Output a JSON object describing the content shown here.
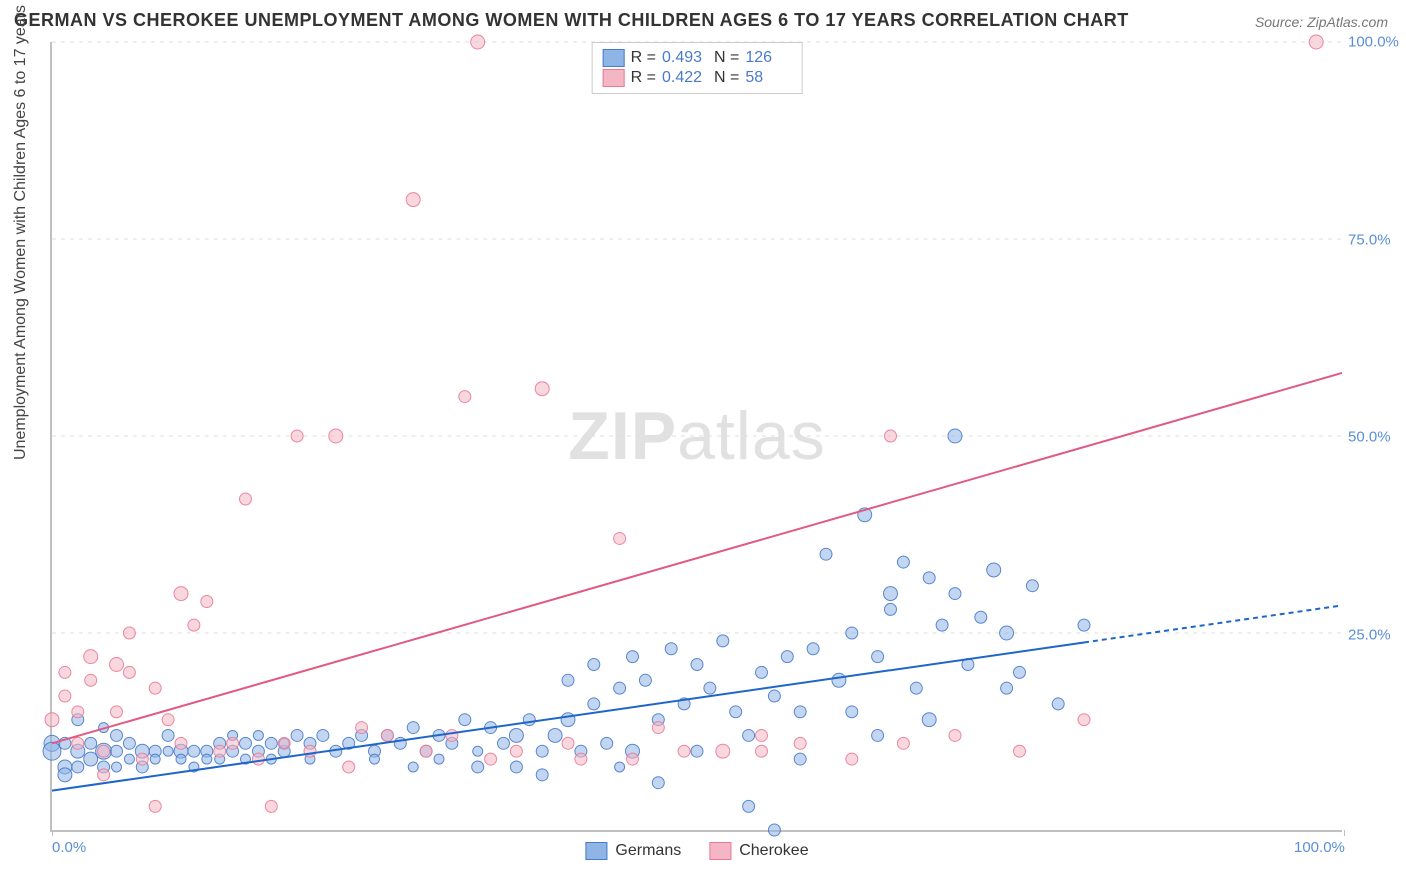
{
  "title": "GERMAN VS CHEROKEE UNEMPLOYMENT AMONG WOMEN WITH CHILDREN AGES 6 TO 17 YEARS CORRELATION CHART",
  "source_label": "Source:",
  "source_value": "ZipAtlas.com",
  "ylabel": "Unemployment Among Women with Children Ages 6 to 17 years",
  "watermark_left": "ZIP",
  "watermark_right": "atlas",
  "chart": {
    "type": "scatter",
    "xlim": [
      0,
      100
    ],
    "ylim": [
      0,
      100
    ],
    "y_ticks": [
      25,
      50,
      75,
      100
    ],
    "y_tick_labels": [
      "25.0%",
      "50.0%",
      "75.0%",
      "100.0%"
    ],
    "x_ticks": [
      0,
      100
    ],
    "x_tick_labels": [
      "0.0%",
      "100.0%"
    ],
    "background_color": "#ffffff",
    "grid_color": "#dddddd",
    "grid_dash": true,
    "axis_color": "#c0c0c0",
    "tick_label_color": "#5a8fd6",
    "marker_radius_min": 5,
    "marker_radius_max": 10,
    "marker_opacity": 0.55,
    "marker_stroke_opacity": 0.9,
    "series": [
      {
        "name": "Germans",
        "fill_color": "#8fb5e6",
        "stroke_color": "#4a7bc8",
        "stats": {
          "R": "0.493",
          "N": "126"
        },
        "trend": {
          "x1": 0,
          "y1": 5,
          "x2": 80,
          "y2": 23.8,
          "color": "#1e66c8",
          "width": 2,
          "extrap_to_x": 100,
          "extrap_y": 28.5,
          "dash": "5,4"
        },
        "points": [
          [
            0,
            11,
            8
          ],
          [
            0,
            10,
            9
          ],
          [
            1,
            8,
            7
          ],
          [
            1,
            7,
            7
          ],
          [
            1,
            11,
            6
          ],
          [
            2,
            10,
            7
          ],
          [
            2,
            14,
            6
          ],
          [
            2,
            8,
            6
          ],
          [
            3,
            9,
            7
          ],
          [
            3,
            11,
            6
          ],
          [
            4,
            10,
            8
          ],
          [
            4,
            13,
            5
          ],
          [
            4,
            8,
            6
          ],
          [
            5,
            12,
            6
          ],
          [
            5,
            10,
            6
          ],
          [
            5,
            8,
            5
          ],
          [
            6,
            11,
            6
          ],
          [
            6,
            9,
            5
          ],
          [
            7,
            10,
            7
          ],
          [
            7,
            8,
            6
          ],
          [
            8,
            10,
            6
          ],
          [
            8,
            9,
            5
          ],
          [
            9,
            12,
            6
          ],
          [
            9,
            10,
            5
          ],
          [
            10,
            10,
            7
          ],
          [
            10,
            9,
            5
          ],
          [
            11,
            10,
            6
          ],
          [
            11,
            8,
            5
          ],
          [
            12,
            10,
            6
          ],
          [
            12,
            9,
            5
          ],
          [
            13,
            11,
            6
          ],
          [
            13,
            9,
            5
          ],
          [
            14,
            10,
            6
          ],
          [
            14,
            12,
            5
          ],
          [
            15,
            11,
            6
          ],
          [
            15,
            9,
            5
          ],
          [
            16,
            10,
            6
          ],
          [
            16,
            12,
            5
          ],
          [
            17,
            11,
            6
          ],
          [
            17,
            9,
            5
          ],
          [
            18,
            10,
            6
          ],
          [
            18,
            11,
            5
          ],
          [
            19,
            12,
            6
          ],
          [
            20,
            11,
            6
          ],
          [
            20,
            9,
            5
          ],
          [
            21,
            12,
            6
          ],
          [
            22,
            10,
            6
          ],
          [
            23,
            11,
            6
          ],
          [
            24,
            12,
            6
          ],
          [
            25,
            10,
            6
          ],
          [
            25,
            9,
            5
          ],
          [
            26,
            12,
            6
          ],
          [
            27,
            11,
            6
          ],
          [
            28,
            8,
            5
          ],
          [
            28,
            13,
            6
          ],
          [
            29,
            10,
            6
          ],
          [
            30,
            12,
            6
          ],
          [
            30,
            9,
            5
          ],
          [
            31,
            11,
            6
          ],
          [
            32,
            14,
            6
          ],
          [
            33,
            10,
            5
          ],
          [
            33,
            8,
            6
          ],
          [
            34,
            13,
            6
          ],
          [
            35,
            11,
            6
          ],
          [
            36,
            12,
            7
          ],
          [
            36,
            8,
            6
          ],
          [
            37,
            14,
            6
          ],
          [
            38,
            10,
            6
          ],
          [
            38,
            7,
            6
          ],
          [
            39,
            12,
            7
          ],
          [
            40,
            19,
            6
          ],
          [
            40,
            14,
            7
          ],
          [
            41,
            10,
            6
          ],
          [
            42,
            21,
            6
          ],
          [
            42,
            16,
            6
          ],
          [
            43,
            11,
            6
          ],
          [
            44,
            18,
            6
          ],
          [
            44,
            8,
            5
          ],
          [
            45,
            22,
            6
          ],
          [
            45,
            10,
            7
          ],
          [
            46,
            19,
            6
          ],
          [
            47,
            6,
            6
          ],
          [
            47,
            14,
            6
          ],
          [
            48,
            23,
            6
          ],
          [
            49,
            16,
            6
          ],
          [
            50,
            21,
            6
          ],
          [
            50,
            10,
            6
          ],
          [
            51,
            18,
            6
          ],
          [
            52,
            24,
            6
          ],
          [
            53,
            15,
            6
          ],
          [
            54,
            3,
            6
          ],
          [
            54,
            12,
            6
          ],
          [
            55,
            20,
            6
          ],
          [
            56,
            17,
            6
          ],
          [
            56,
            0,
            6
          ],
          [
            57,
            22,
            6
          ],
          [
            58,
            15,
            6
          ],
          [
            58,
            9,
            6
          ],
          [
            59,
            23,
            6
          ],
          [
            60,
            35,
            6
          ],
          [
            61,
            19,
            7
          ],
          [
            62,
            25,
            6
          ],
          [
            62,
            15,
            6
          ],
          [
            63,
            40,
            7
          ],
          [
            64,
            22,
            6
          ],
          [
            64,
            12,
            6
          ],
          [
            65,
            28,
            6
          ],
          [
            65,
            30,
            7
          ],
          [
            66,
            34,
            6
          ],
          [
            67,
            18,
            6
          ],
          [
            68,
            32,
            6
          ],
          [
            68,
            14,
            7
          ],
          [
            69,
            26,
            6
          ],
          [
            70,
            30,
            6
          ],
          [
            70,
            50,
            7
          ],
          [
            71,
            21,
            6
          ],
          [
            72,
            27,
            6
          ],
          [
            73,
            33,
            7
          ],
          [
            74,
            18,
            6
          ],
          [
            74,
            25,
            7
          ],
          [
            75,
            20,
            6
          ],
          [
            76,
            31,
            6
          ],
          [
            78,
            16,
            6
          ],
          [
            80,
            26,
            6
          ]
        ]
      },
      {
        "name": "Cherokee",
        "fill_color": "#f4b6c4",
        "stroke_color": "#e87a96",
        "stats": {
          "R": "0.422",
          "N": "58"
        },
        "trend": {
          "x1": 0,
          "y1": 11,
          "x2": 100,
          "y2": 58,
          "color": "#e05a82",
          "width": 2
        },
        "points": [
          [
            0,
            14,
            7
          ],
          [
            1,
            17,
            6
          ],
          [
            1,
            20,
            6
          ],
          [
            2,
            11,
            6
          ],
          [
            2,
            15,
            6
          ],
          [
            3,
            19,
            6
          ],
          [
            3,
            22,
            7
          ],
          [
            4,
            10,
            6
          ],
          [
            4,
            7,
            6
          ],
          [
            5,
            21,
            7
          ],
          [
            5,
            15,
            6
          ],
          [
            6,
            20,
            6
          ],
          [
            6,
            25,
            6
          ],
          [
            7,
            9,
            6
          ],
          [
            8,
            18,
            6
          ],
          [
            8,
            3,
            6
          ],
          [
            9,
            14,
            6
          ],
          [
            10,
            30,
            7
          ],
          [
            10,
            11,
            6
          ],
          [
            11,
            26,
            6
          ],
          [
            12,
            29,
            6
          ],
          [
            13,
            10,
            6
          ],
          [
            14,
            11,
            6
          ],
          [
            15,
            42,
            6
          ],
          [
            16,
            9,
            6
          ],
          [
            17,
            3,
            6
          ],
          [
            18,
            11,
            6
          ],
          [
            19,
            50,
            6
          ],
          [
            20,
            10,
            6
          ],
          [
            22,
            50,
            7
          ],
          [
            23,
            8,
            6
          ],
          [
            24,
            13,
            6
          ],
          [
            26,
            12,
            6
          ],
          [
            28,
            80,
            7
          ],
          [
            29,
            10,
            6
          ],
          [
            31,
            12,
            6
          ],
          [
            32,
            55,
            6
          ],
          [
            33,
            100,
            7
          ],
          [
            34,
            9,
            6
          ],
          [
            36,
            10,
            6
          ],
          [
            38,
            56,
            7
          ],
          [
            40,
            11,
            6
          ],
          [
            41,
            9,
            6
          ],
          [
            44,
            37,
            6
          ],
          [
            45,
            9,
            6
          ],
          [
            47,
            13,
            6
          ],
          [
            49,
            10,
            6
          ],
          [
            52,
            10,
            7
          ],
          [
            55,
            12,
            6
          ],
          [
            58,
            11,
            6
          ],
          [
            62,
            9,
            6
          ],
          [
            65,
            50,
            6
          ],
          [
            66,
            11,
            6
          ],
          [
            70,
            12,
            6
          ],
          [
            75,
            10,
            6
          ],
          [
            80,
            14,
            6
          ],
          [
            98,
            100,
            7
          ],
          [
            55,
            10,
            6
          ]
        ]
      }
    ],
    "stats_legend": {
      "R_label": "R =",
      "N_label": "N ="
    },
    "series_legend_labels": [
      "Germans",
      "Cherokee"
    ]
  }
}
